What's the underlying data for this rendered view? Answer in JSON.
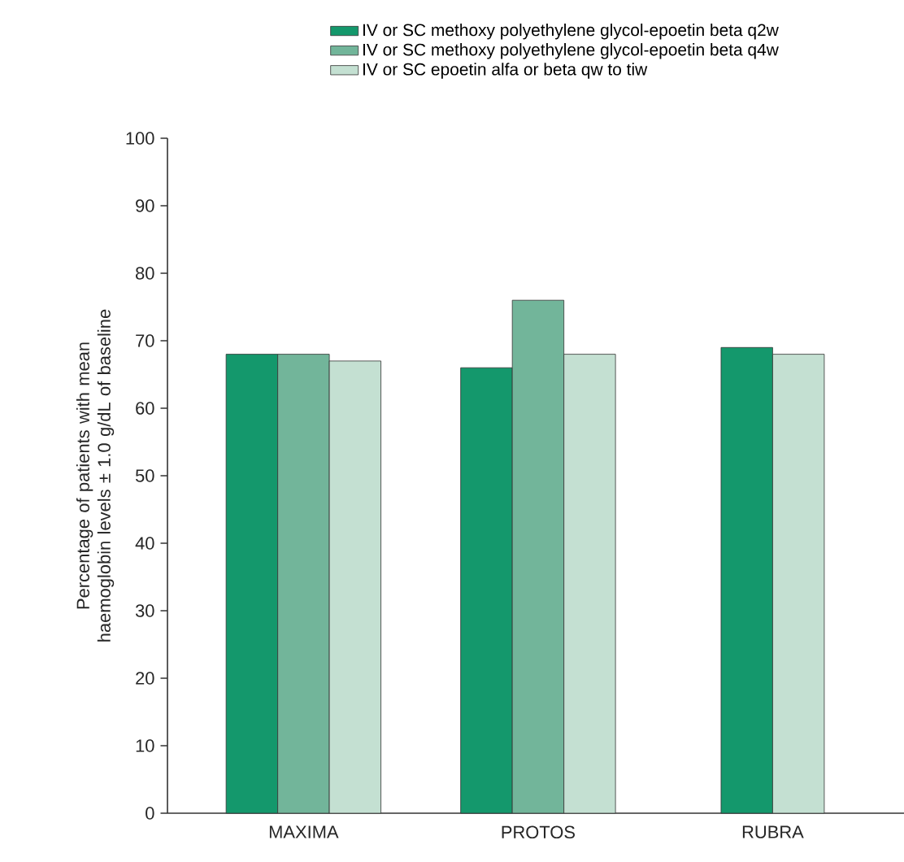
{
  "chart_data": {
    "type": "bar",
    "ylabel": "Percentage of patients with mean haemoglobin levels ± 1.0 g/dL of baseline",
    "categories": [
      "MAXIMA",
      "PROTOS",
      "RUBRA"
    ],
    "series": [
      {
        "name": "IV or SC methoxy polyethylene glycol-epoetin beta q2w",
        "color": "#14986c",
        "values": [
          68,
          66,
          69
        ]
      },
      {
        "name": "IV or SC methoxy polyethylene glycol-epoetin beta q4w",
        "color": "#72b59a",
        "values": [
          68,
          76,
          null
        ]
      },
      {
        "name": "IV or SC epoetin alfa or beta qw to tiw",
        "color": "#c4e0d2",
        "values": [
          67,
          68,
          68
        ]
      }
    ],
    "ylim": [
      0,
      100
    ],
    "yticks": [
      0,
      10,
      20,
      30,
      40,
      50,
      60,
      70,
      80,
      90,
      100
    ],
    "grid": false,
    "legend": "top"
  }
}
